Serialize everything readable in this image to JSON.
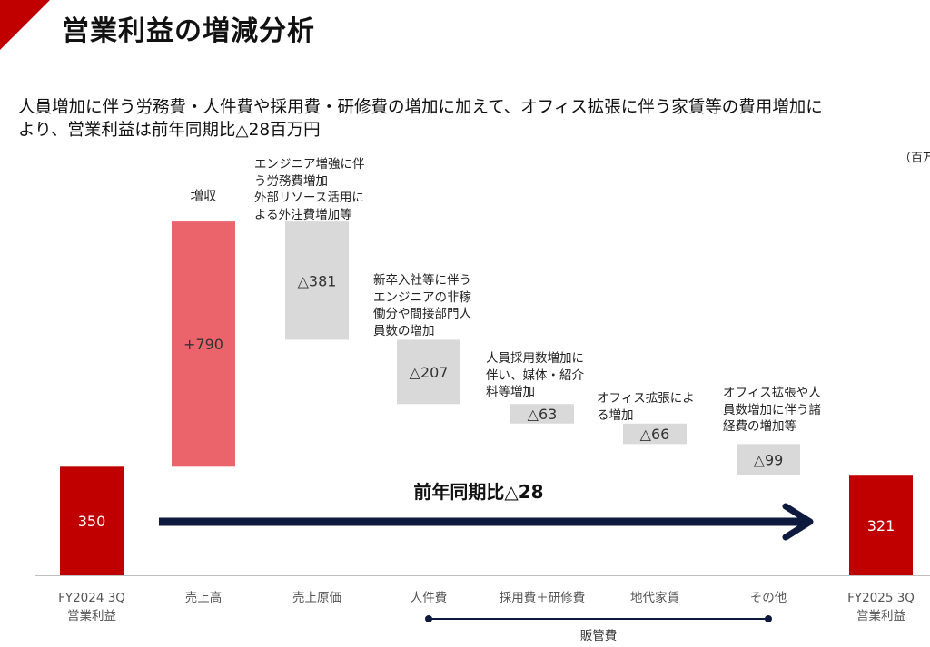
{
  "page": {
    "title": "営業利益の増減分析",
    "summary_line1": "人員増加に伴う労務費・人件費や採用費・研修費の増加に加えて、オフィス拡張に伴う家賃等の費用増加に",
    "summary_line2": "より、営業利益は前年同期比△28百万円",
    "unit_note": "（百万"
  },
  "colors": {
    "brand_red": "#c00000",
    "increase": "#eb636b",
    "decrease": "#d9d9d9",
    "arrow": "#0e1a3d",
    "axis": "#bfbfbf"
  },
  "chart_data": {
    "type": "waterfall",
    "steps": [
      {
        "category_lines": [
          "FY2024 3Q",
          "営業利益"
        ],
        "kind": "total",
        "value": 350,
        "label": "350"
      },
      {
        "category_lines": [
          "売上高"
        ],
        "kind": "increase",
        "value": 790,
        "label": "+790",
        "header": "増収"
      },
      {
        "category_lines": [
          "売上原価"
        ],
        "kind": "decrease",
        "value": -381,
        "label": "△381",
        "note_lines": [
          "エンジニア増強に伴",
          "う労務費増加",
          "外部リソース活用に",
          "よる外注費増加等"
        ]
      },
      {
        "category_lines": [
          "人件費"
        ],
        "kind": "decrease",
        "value": -207,
        "label": "△207",
        "note_lines": [
          "新卒入社等に伴う",
          "エンジニアの非稼",
          "働分や間接部門人",
          "員数の増加"
        ]
      },
      {
        "category_lines": [
          "採用費＋研修費"
        ],
        "kind": "decrease",
        "value": -63,
        "label": "△63",
        "note_lines": [
          "人員採用数増加に",
          "伴い、媒体・紹介",
          "料等増加"
        ]
      },
      {
        "category_lines": [
          "地代家賃"
        ],
        "kind": "decrease",
        "value": -66,
        "label": "△66",
        "note_lines": [
          "オフィス拡張によ",
          "る増加"
        ]
      },
      {
        "category_lines": [
          "その他"
        ],
        "kind": "decrease",
        "value": -99,
        "label": "△99",
        "note_lines": [
          "オフィス拡張や人",
          "員数増加に伴う諸",
          "経費の増加等"
        ]
      },
      {
        "category_lines": [
          "FY2025 3Q",
          "営業利益"
        ],
        "kind": "total",
        "value": 321,
        "label": "321"
      }
    ],
    "yoy_label": "前年同期比△28",
    "group_bracket": {
      "label": "販管費",
      "from_index": 3,
      "to_index": 6
    }
  }
}
